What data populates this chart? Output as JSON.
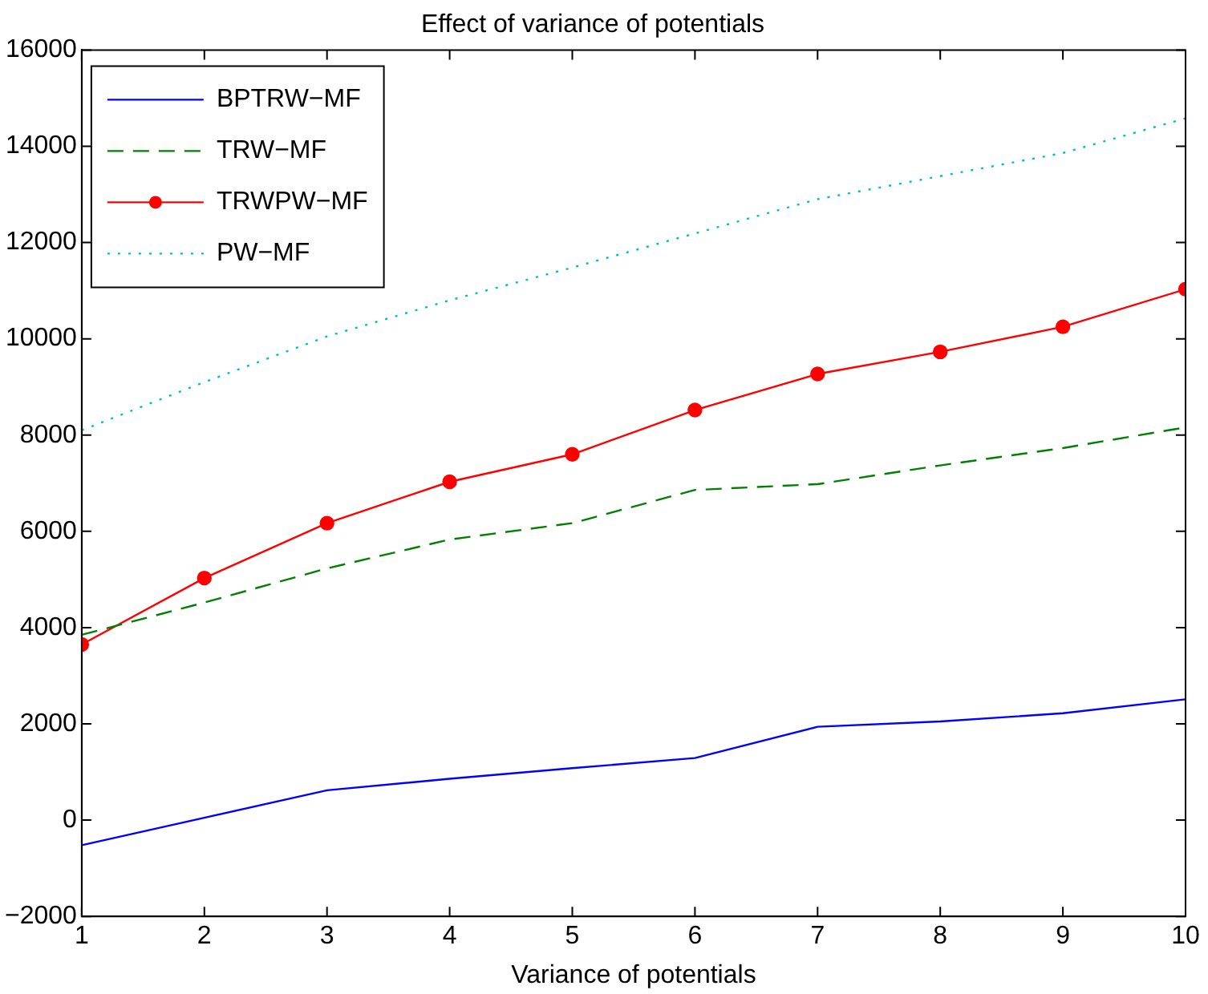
{
  "chart_data": {
    "type": "line",
    "title": "Effect of variance of potentials",
    "xlabel": "Variance of potentials",
    "x": [
      1,
      2,
      3,
      4,
      5,
      6,
      7,
      8,
      9,
      10
    ],
    "xlim": [
      1,
      10
    ],
    "xticks": [
      1,
      2,
      3,
      4,
      5,
      6,
      7,
      8,
      9,
      10
    ],
    "ylim": [
      -2000,
      16000
    ],
    "yticks": [
      -2000,
      0,
      2000,
      4000,
      6000,
      8000,
      10000,
      12000,
      14000,
      16000
    ],
    "grid": false,
    "legend": "top left",
    "series": [
      {
        "name": "BPTRW−MF",
        "color": "#0000ff",
        "line_style": "solid",
        "marker": "none",
        "values": [
          -520,
          50,
          620,
          860,
          1080,
          1290,
          1940,
          2050,
          2220,
          2510
        ]
      },
      {
        "name": "TRW−MF",
        "color": "#008000",
        "line_style": "dashed",
        "marker": "none",
        "values": [
          3850,
          4520,
          5230,
          5830,
          6170,
          6860,
          6980,
          7370,
          7730,
          8160
        ]
      },
      {
        "name": "TRWPW−MF",
        "color": "#ff0000",
        "line_style": "solid",
        "marker": "circle",
        "values": [
          3650,
          5030,
          6170,
          7030,
          7600,
          8520,
          9270,
          9730,
          10250,
          11030
        ]
      },
      {
        "name": "PW−MF",
        "color": "#00bfbf",
        "line_style": "dotted",
        "marker": "none",
        "values": [
          8100,
          9100,
          10050,
          10800,
          11480,
          12190,
          12900,
          13380,
          13860,
          14580
        ]
      }
    ]
  }
}
